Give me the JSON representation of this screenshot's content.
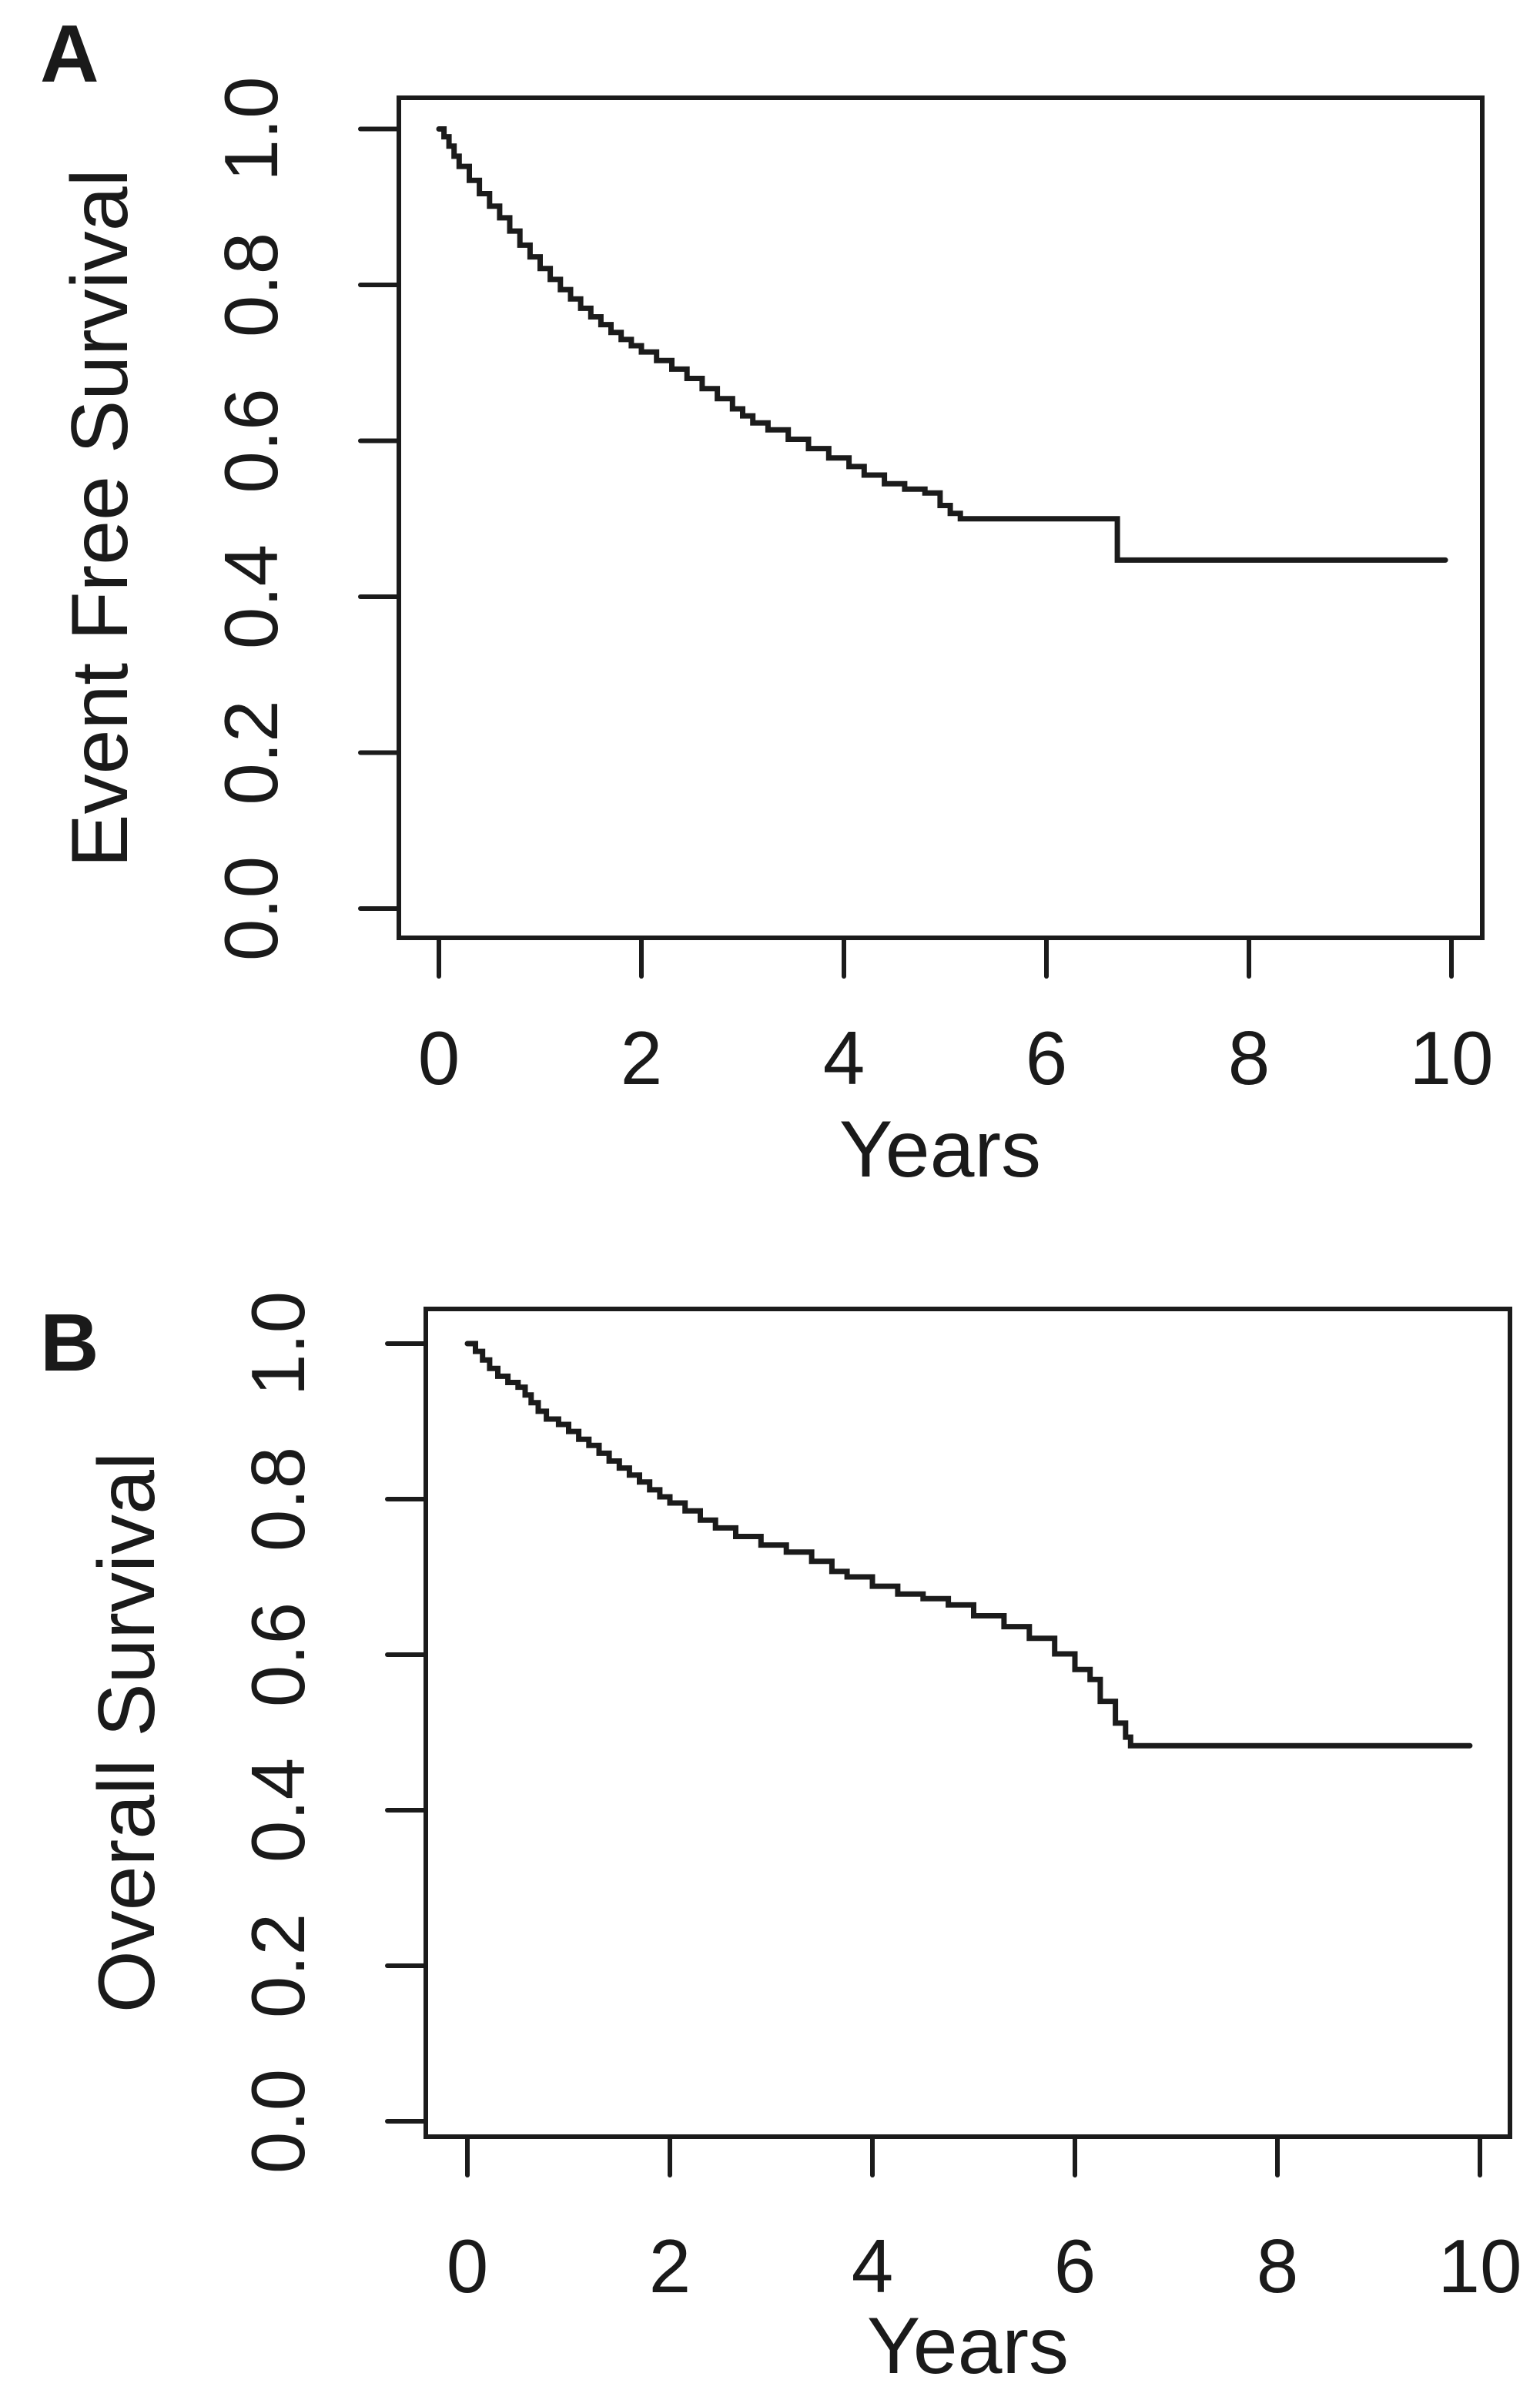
{
  "figure": {
    "background_color": "#ffffff",
    "line_color": "#1b1b1b",
    "text_color": "#1a1a1a",
    "panel_label_color": "#156082",
    "panels": [
      {
        "id": "A",
        "panel_label": "A",
        "ylabel": "Event Free Survival",
        "xlabel": "Years",
        "x_tick_labels": [
          "0",
          "2",
          "4",
          "6",
          "8",
          "10"
        ],
        "y_tick_labels": [
          "0.0",
          "0.2",
          "0.4",
          "0.6",
          "0.8",
          "1.0"
        ]
      },
      {
        "id": "B",
        "panel_label": "B",
        "ylabel": "Overall Survival",
        "xlabel": "Years",
        "x_tick_labels": [
          "0",
          "2",
          "4",
          "6",
          "8",
          "10"
        ],
        "y_tick_labels": [
          "0.0",
          "0.2",
          "0.4",
          "0.6",
          "0.8",
          "1.0"
        ]
      }
    ]
  },
  "chart_data": [
    {
      "type": "line",
      "subtype": "kaplan-meier-step",
      "panel": "A",
      "title": "",
      "xlabel": "Years",
      "ylabel": "Event Free Survival",
      "xlim": [
        -0.4,
        10.3
      ],
      "ylim": [
        -0.04,
        1.04
      ],
      "x_ticks": [
        0,
        2,
        4,
        6,
        8,
        10
      ],
      "y_ticks": [
        0.0,
        0.2,
        0.4,
        0.6,
        0.8,
        1.0
      ],
      "grid": false,
      "legend": "none",
      "series": [
        {
          "name": "Event Free Survival",
          "step": "after",
          "points": [
            [
              0,
              1.0
            ],
            [
              0.05,
              0.99
            ],
            [
              0.1,
              0.978
            ],
            [
              0.15,
              0.965
            ],
            [
              0.2,
              0.952
            ],
            [
              0.3,
              0.934
            ],
            [
              0.4,
              0.917
            ],
            [
              0.5,
              0.901
            ],
            [
              0.6,
              0.886
            ],
            [
              0.7,
              0.869
            ],
            [
              0.8,
              0.851
            ],
            [
              0.9,
              0.836
            ],
            [
              1.0,
              0.821
            ],
            [
              1.1,
              0.807
            ],
            [
              1.2,
              0.794
            ],
            [
              1.3,
              0.782
            ],
            [
              1.4,
              0.77
            ],
            [
              1.5,
              0.759
            ],
            [
              1.6,
              0.749
            ],
            [
              1.7,
              0.739
            ],
            [
              1.8,
              0.73
            ],
            [
              1.9,
              0.722
            ],
            [
              2.0,
              0.714
            ],
            [
              2.15,
              0.703
            ],
            [
              2.3,
              0.692
            ],
            [
              2.45,
              0.68
            ],
            [
              2.6,
              0.667
            ],
            [
              2.75,
              0.654
            ],
            [
              2.9,
              0.641
            ],
            [
              3.0,
              0.632
            ],
            [
              3.1,
              0.623
            ],
            [
              3.25,
              0.614
            ],
            [
              3.45,
              0.602
            ],
            [
              3.65,
              0.59
            ],
            [
              3.85,
              0.578
            ],
            [
              4.05,
              0.567
            ],
            [
              4.2,
              0.556
            ],
            [
              4.4,
              0.545
            ],
            [
              4.6,
              0.538
            ],
            [
              4.8,
              0.533
            ],
            [
              4.95,
              0.517
            ],
            [
              5.05,
              0.507
            ],
            [
              5.15,
              0.5
            ],
            [
              6.7,
              0.447
            ],
            [
              9.94,
              0.447
            ]
          ]
        }
      ]
    },
    {
      "type": "line",
      "subtype": "kaplan-meier-step",
      "panel": "B",
      "title": "",
      "xlabel": "Years",
      "ylabel": "Overall Survival",
      "xlim": [
        -0.4,
        10.3
      ],
      "ylim": [
        -0.04,
        1.04
      ],
      "x_ticks": [
        0,
        2,
        4,
        6,
        8,
        10
      ],
      "y_ticks": [
        0.0,
        0.2,
        0.4,
        0.6,
        0.8,
        1.0
      ],
      "grid": false,
      "legend": "none",
      "series": [
        {
          "name": "Overall Survival",
          "step": "after",
          "points": [
            [
              0,
              1.0
            ],
            [
              0.08,
              0.99
            ],
            [
              0.15,
              0.979
            ],
            [
              0.22,
              0.968
            ],
            [
              0.3,
              0.958
            ],
            [
              0.4,
              0.95
            ],
            [
              0.5,
              0.944
            ],
            [
              0.57,
              0.934
            ],
            [
              0.63,
              0.924
            ],
            [
              0.7,
              0.913
            ],
            [
              0.78,
              0.903
            ],
            [
              0.9,
              0.896
            ],
            [
              1.0,
              0.887
            ],
            [
              1.1,
              0.877
            ],
            [
              1.2,
              0.869
            ],
            [
              1.3,
              0.859
            ],
            [
              1.4,
              0.849
            ],
            [
              1.5,
              0.84
            ],
            [
              1.6,
              0.831
            ],
            [
              1.7,
              0.822
            ],
            [
              1.8,
              0.812
            ],
            [
              1.9,
              0.803
            ],
            [
              2.0,
              0.795
            ],
            [
              2.15,
              0.785
            ],
            [
              2.3,
              0.773
            ],
            [
              2.45,
              0.763
            ],
            [
              2.65,
              0.752
            ],
            [
              2.9,
              0.741
            ],
            [
              3.15,
              0.732
            ],
            [
              3.4,
              0.72
            ],
            [
              3.6,
              0.707
            ],
            [
              3.75,
              0.7
            ],
            [
              4.0,
              0.688
            ],
            [
              4.25,
              0.678
            ],
            [
              4.5,
              0.672
            ],
            [
              4.75,
              0.664
            ],
            [
              5.0,
              0.65
            ],
            [
              5.3,
              0.636
            ],
            [
              5.55,
              0.621
            ],
            [
              5.8,
              0.601
            ],
            [
              6.0,
              0.581
            ],
            [
              6.15,
              0.568
            ],
            [
              6.25,
              0.54
            ],
            [
              6.4,
              0.512
            ],
            [
              6.5,
              0.494
            ],
            [
              6.55,
              0.483
            ],
            [
              9.9,
              0.483
            ]
          ]
        }
      ]
    }
  ]
}
